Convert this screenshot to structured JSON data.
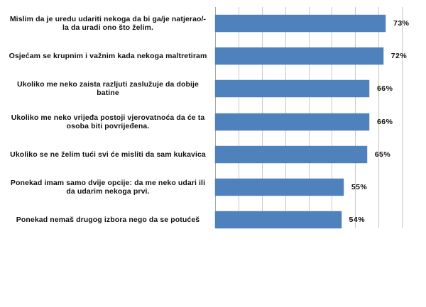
{
  "chart_data": {
    "type": "bar",
    "orientation": "horizontal",
    "title": "",
    "xlabel": "",
    "ylabel": "",
    "categories": [
      "Mislim da je uredu udariti nekoga da bi ga/je natjerao/-la da uradi ono što želim.",
      "Osjećam se krupnim i važnim kada nekoga maltretiram",
      "Ukoliko me neko zaista razljuti zaslužuje da dobije batine",
      "Ukoliko me neko vrijeđa postoji vjerovatnoća da će ta osoba biti povrijeđena.",
      "Ukoliko se ne želim tući svi će misliti da sam kukavica",
      "Ponekad imam samo dvije opcije: da me neko udari ili da udarim nekoga prvi.",
      "Ponekad nemaš drugog izbora nego da se potućeš"
    ],
    "values": [
      73,
      72,
      66,
      66,
      65,
      55,
      54
    ],
    "value_labels": [
      "73%",
      "72%",
      "66%",
      "66%",
      "65%",
      "55%",
      "54%"
    ],
    "unit": "%",
    "xlim": [
      0,
      80
    ],
    "grid_step": 10,
    "grid": true,
    "legend": "none",
    "bar_color": "#4f81bd"
  }
}
